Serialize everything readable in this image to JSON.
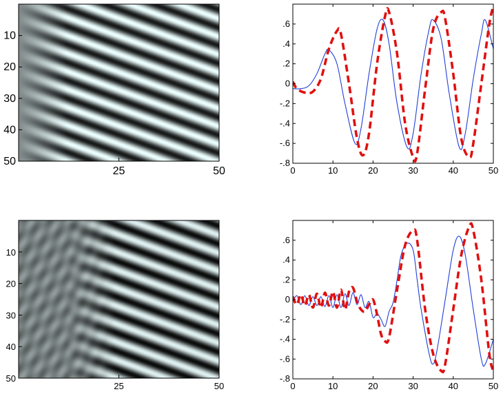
{
  "chart_data": [
    {
      "type": "heatmap",
      "description_pattern": "diagonal stripes",
      "xticks": [
        "25",
        "50"
      ],
      "yticks": [
        "10",
        "20",
        "30",
        "40",
        "50"
      ],
      "xlim": [
        0,
        50
      ],
      "ylim": [
        0,
        50
      ],
      "colormap": "gray",
      "stripes": {
        "kx": 0.255,
        "ky": 0.55,
        "ramp_start": 0,
        "ramp_len": 12,
        "base": 0.55,
        "interference": 0
      }
    },
    {
      "type": "line",
      "xlim": [
        0,
        50
      ],
      "ylim": [
        -0.8,
        0.8
      ],
      "xticks": [
        0,
        10,
        20,
        30,
        40,
        50
      ],
      "yticks": [
        -0.8,
        -0.6,
        -0.4,
        -0.2,
        0,
        0.2,
        0.4,
        0.6
      ],
      "series": [
        {
          "color": "#1f3fd6",
          "style": "solid",
          "x": [
            0,
            2,
            4,
            6,
            8,
            9,
            11,
            13,
            15.5,
            17,
            19,
            21,
            22.5,
            24,
            26,
            28.5,
            30,
            32,
            34,
            35,
            37,
            39,
            41.5,
            43,
            45,
            47,
            48,
            50
          ],
          "y": [
            -0.05,
            -0.05,
            -0.02,
            0.1,
            0.3,
            0.34,
            0.2,
            -0.2,
            -0.6,
            -0.45,
            0.1,
            0.55,
            0.64,
            0.4,
            -0.2,
            -0.64,
            -0.5,
            0.1,
            0.55,
            0.64,
            0.45,
            -0.1,
            -0.64,
            -0.5,
            0.05,
            0.5,
            0.64,
            0.35
          ]
        },
        {
          "color": "#e01010",
          "style": "dashed",
          "x": [
            0,
            1,
            3,
            5,
            7,
            9,
            11,
            12,
            14,
            16,
            17.5,
            19,
            21,
            23,
            24,
            26,
            28,
            30,
            31,
            33,
            35,
            37,
            38,
            40,
            42,
            44,
            45,
            47,
            49,
            50
          ],
          "y": [
            0.02,
            -0.05,
            -0.09,
            -0.08,
            0.05,
            0.35,
            0.53,
            0.5,
            0.0,
            -0.55,
            -0.72,
            -0.5,
            0.2,
            0.68,
            0.72,
            0.3,
            -0.4,
            -0.74,
            -0.7,
            -0.05,
            0.55,
            0.72,
            0.65,
            0.1,
            -0.55,
            -0.74,
            -0.6,
            0.0,
            0.6,
            0.78
          ]
        }
      ]
    },
    {
      "type": "heatmap",
      "description_pattern": "diagonal stripes with interference region on left",
      "xticks": [
        "25",
        "50"
      ],
      "yticks": [
        "10",
        "20",
        "30",
        "40",
        "50"
      ],
      "xlim": [
        0,
        50
      ],
      "ylim": [
        0,
        50
      ],
      "colormap": "gray",
      "stripes": {
        "kx": 0.255,
        "ky": 0.55,
        "ramp_start": 12,
        "ramp_len": 12,
        "base": 0.55,
        "interference": 1
      }
    },
    {
      "type": "line",
      "xlim": [
        0,
        50
      ],
      "ylim": [
        -0.8,
        0.8
      ],
      "xticks": [
        0,
        10,
        20,
        30,
        40,
        50
      ],
      "yticks": [
        -0.8,
        -0.6,
        -0.4,
        -0.2,
        0,
        0.2,
        0.4,
        0.6
      ],
      "series": [
        {
          "color": "#1f3fd6",
          "style": "solid",
          "x": [
            0,
            1,
            2,
            3,
            4,
            5,
            6,
            7,
            8,
            9,
            10,
            11,
            12,
            13,
            14,
            15,
            16,
            17,
            18,
            19,
            20,
            21,
            22,
            23,
            24,
            25,
            26,
            27,
            28.5,
            30,
            31,
            32,
            34,
            35,
            36,
            38,
            40,
            41.5,
            43,
            45,
            47,
            48,
            50
          ],
          "y": [
            -0.02,
            0.04,
            -0.05,
            0.04,
            -0.06,
            0.03,
            -0.06,
            0.03,
            -0.07,
            0.04,
            -0.08,
            0.05,
            -0.08,
            0.06,
            -0.06,
            0.07,
            -0.05,
            0.05,
            -0.08,
            -0.02,
            -0.18,
            -0.14,
            -0.2,
            -0.27,
            -0.12,
            -0.03,
            0.2,
            0.45,
            0.57,
            0.5,
            0.2,
            -0.1,
            -0.55,
            -0.65,
            -0.5,
            0.0,
            0.5,
            0.64,
            0.45,
            -0.1,
            -0.6,
            -0.65,
            -0.4
          ]
        },
        {
          "color": "#e01010",
          "style": "dashed",
          "x": [
            0,
            1,
            2,
            3,
            4,
            5,
            6,
            7,
            8,
            9,
            10,
            11,
            12,
            13,
            14,
            15,
            16,
            17,
            18,
            19,
            20,
            21,
            22,
            23,
            24,
            26,
            28,
            30,
            31,
            33,
            35,
            37,
            38,
            40,
            42,
            44,
            45,
            47,
            49,
            50
          ],
          "y": [
            0.03,
            -0.05,
            0.05,
            -0.06,
            0.05,
            -0.08,
            0.06,
            -0.08,
            0.07,
            -0.06,
            0.08,
            -0.08,
            0.1,
            -0.1,
            0.08,
            0.12,
            -0.02,
            -0.1,
            -0.12,
            -0.05,
            0.0,
            -0.15,
            -0.35,
            -0.42,
            -0.38,
            0.1,
            0.55,
            0.7,
            0.6,
            -0.1,
            -0.55,
            -0.72,
            -0.65,
            -0.1,
            0.45,
            0.74,
            0.7,
            0.2,
            -0.55,
            -0.72
          ]
        }
      ]
    }
  ]
}
